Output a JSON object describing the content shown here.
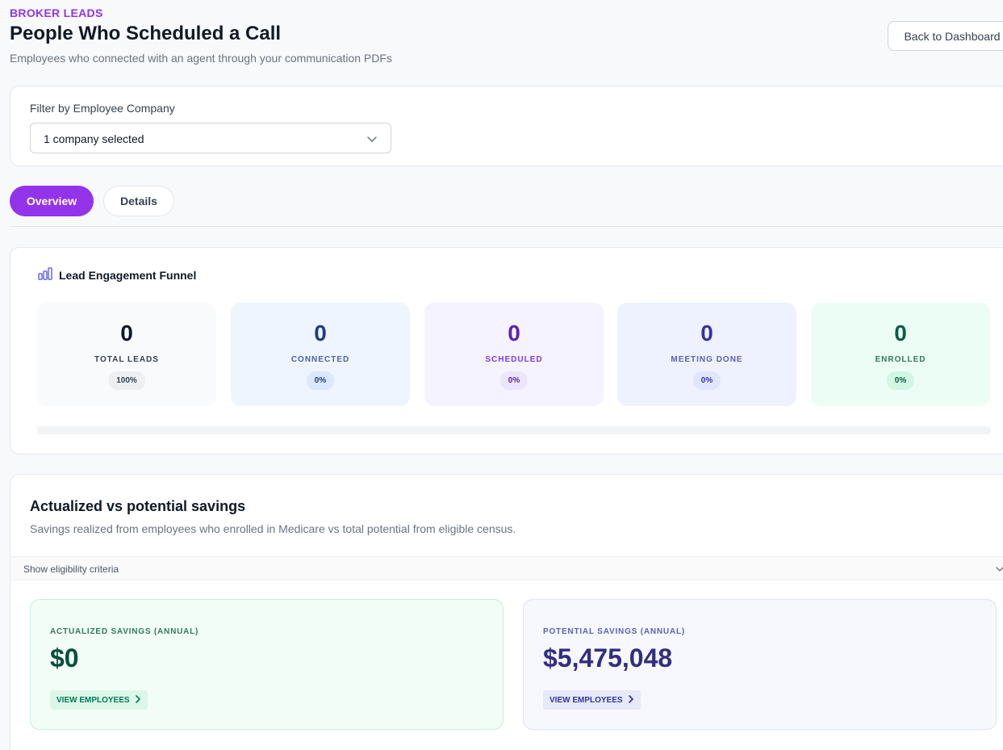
{
  "header": {
    "eyebrow": "BROKER LEADS",
    "title": "People Who Scheduled a Call",
    "subtitle": "Employees who connected with an agent through your communication PDFs",
    "back_button": "Back to Dashboard"
  },
  "filter": {
    "label": "Filter by Employee Company",
    "selected": "1 company selected",
    "icon": "chevron-down-icon"
  },
  "tabs": [
    {
      "label": "Overview",
      "active": true
    },
    {
      "label": "Details",
      "active": false
    }
  ],
  "funnel": {
    "title": "Lead Engagement Funnel",
    "icon": "bar-chart-icon",
    "stages": [
      {
        "value": "0",
        "label": "TOTAL LEADS",
        "pct": "100%",
        "bg": "#f9fafb",
        "fg": "#111827",
        "label_color": "#374151",
        "pill_bg": "#eeeff1",
        "pill_fg": "#374151"
      },
      {
        "value": "0",
        "label": "CONNECTED",
        "pct": "0%",
        "bg": "#eff5ff",
        "fg": "#1e3a8a",
        "label_color": "#4863a8",
        "pill_bg": "#dbe7fd",
        "pill_fg": "#1e3a8a"
      },
      {
        "value": "0",
        "label": "SCHEDULED",
        "pct": "0%",
        "bg": "#f5f3ff",
        "fg": "#5b21b6",
        "label_color": "#7c3aed",
        "pill_bg": "#ebe5fd",
        "pill_fg": "#5b21b6"
      },
      {
        "value": "0",
        "label": "MEETING DONE",
        "pct": "0%",
        "bg": "#eef2ff",
        "fg": "#3730a3",
        "label_color": "#5a5fb0",
        "pill_bg": "#e0e6fd",
        "pill_fg": "#3730a3"
      },
      {
        "value": "0",
        "label": "ENROLLED",
        "pct": "0%",
        "bg": "#ecfdf5",
        "fg": "#065f46",
        "label_color": "#2f7a5a",
        "pill_bg": "#d1f6e4",
        "pill_fg": "#065f46"
      }
    ]
  },
  "savings": {
    "title": "Actualized vs potential savings",
    "subtitle": "Savings realized from employees who enrolled in Medicare vs total potential from eligible census.",
    "eligibility_toggle": "Show eligibility criteria",
    "actualized": {
      "label": "ACTUALIZED SAVINGS (ANNUAL)",
      "value": "$0",
      "link": "VIEW EMPLOYEES",
      "label_color": "#2f7a5a",
      "value_color": "#064e3b",
      "link_bg": "#dcf7e9",
      "link_fg": "#047857"
    },
    "potential": {
      "label": "POTENTIAL SAVINGS (ANNUAL)",
      "value": "$5,475,048",
      "link": "VIEW EMPLOYEES",
      "label_color": "#5b5fb8",
      "value_color": "#312e81",
      "link_bg": "#e6e9f8",
      "link_fg": "#3730a3"
    }
  },
  "colors": {
    "accent": "#9333ea"
  }
}
